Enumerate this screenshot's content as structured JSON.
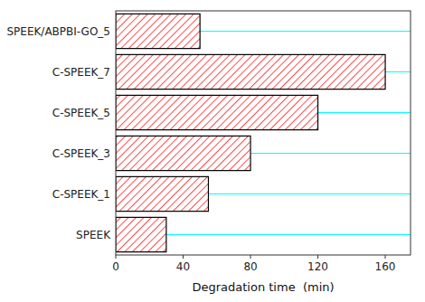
{
  "chart_data": {
    "type": "bar",
    "orientation": "horizontal",
    "categories": [
      "SPEEK",
      "C-SPEEK_1",
      "C-SPEEK_3",
      "C-SPEEK_5",
      "C-SPEEK_7",
      "SPEEK/ABPBI-GO_5"
    ],
    "values": [
      30,
      55,
      80,
      120,
      160,
      50
    ],
    "color": "#ff0000",
    "xlabel": "Degradation time  (min)",
    "xlim": [
      0,
      175
    ],
    "xticks": [
      0,
      40,
      80,
      120,
      160
    ],
    "grid": true
  }
}
